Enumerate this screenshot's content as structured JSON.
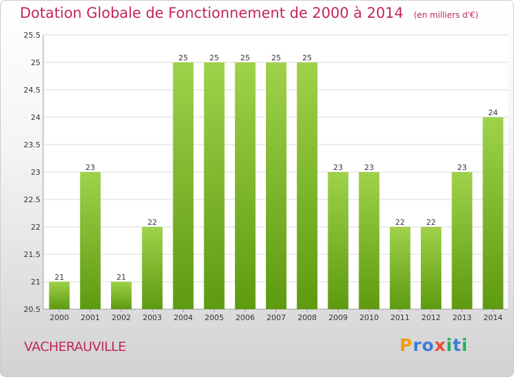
{
  "title": "Dotation Globale de Fonctionnement de 2000 à 2014",
  "unit_note": "(en milliers d'€)",
  "municipality": "VACHERAUVILLE",
  "logo": {
    "letters": [
      "P",
      "r",
      "o",
      "x",
      "i",
      "t",
      "i"
    ],
    "colors": [
      "#f39c12",
      "#3b7dd8",
      "#3b7dd8",
      "#e74c3c",
      "#27ae60",
      "#3b7dd8",
      "#27ae60"
    ]
  },
  "colors": {
    "bar_top": "#9ed24a",
    "bar_bottom": "#5e9a10",
    "grid": "#d9d9d9",
    "accent": "#c2255c"
  },
  "chart_data": {
    "type": "bar",
    "title": "Dotation Globale de Fonctionnement de 2000 à 2014",
    "xlabel": "",
    "ylabel": "",
    "ylim": [
      20.5,
      25.5
    ],
    "yticks": [
      "20.5",
      "21",
      "21.5",
      "22",
      "22.5",
      "23",
      "23.5",
      "24",
      "24.5",
      "25",
      "25.5"
    ],
    "categories": [
      "2000",
      "2001",
      "2002",
      "2003",
      "2004",
      "2005",
      "2006",
      "2007",
      "2008",
      "2009",
      "2010",
      "2011",
      "2012",
      "2013",
      "2014"
    ],
    "values": [
      21,
      23,
      21,
      22,
      25,
      25,
      25,
      25,
      25,
      23,
      23,
      22,
      22,
      23,
      24
    ],
    "grid": true
  }
}
